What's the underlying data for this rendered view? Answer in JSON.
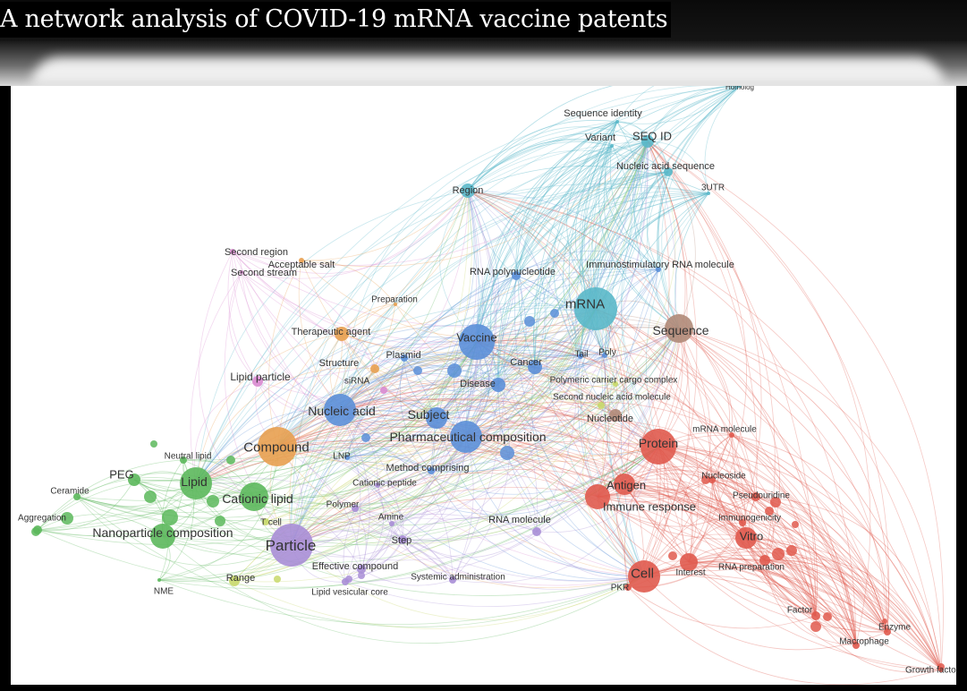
{
  "title": "A network analysis of COVID-19 mRNA vaccine patents",
  "clusters": {
    "cyan": "#5ab8c9",
    "blue": "#5b8fd8",
    "red": "#e05a4e",
    "green": "#5cb85c",
    "purple": "#a98ed6",
    "orange": "#e8a050",
    "yellow": "#c8d86a",
    "brown": "#b08a78",
    "pink": "#d98ad0"
  },
  "nodes": [
    {
      "id": "homolog",
      "label": "Homolog",
      "cluster": "cyan",
      "size": 2
    },
    {
      "id": "seqidentity",
      "label": "Sequence identity",
      "cluster": "cyan",
      "size": 2
    },
    {
      "id": "variant",
      "label": "Variant",
      "cluster": "cyan",
      "size": 2
    },
    {
      "id": "seqid",
      "label": "SEQ ID",
      "cluster": "cyan",
      "size": 7
    },
    {
      "id": "nucseq",
      "label": "Nucleic acid sequence",
      "cluster": "cyan",
      "size": 5
    },
    {
      "id": "utr3",
      "label": "3UTR",
      "cluster": "cyan",
      "size": 2
    },
    {
      "id": "region",
      "label": "Region",
      "cluster": "cyan",
      "size": 8
    },
    {
      "id": "secondregion",
      "label": "Second region",
      "cluster": "pink",
      "size": 3
    },
    {
      "id": "secondstream",
      "label": "Second stream",
      "cluster": "pink",
      "size": 2
    },
    {
      "id": "acceptablesalt",
      "label": "Acceptable salt",
      "cluster": "orange",
      "size": 3
    },
    {
      "id": "rnapoly",
      "label": "RNA polynucleotide",
      "cluster": "blue",
      "size": 5
    },
    {
      "id": "immunostim",
      "label": "Immunostimulatory RNA molecule",
      "cluster": "blue",
      "size": 3
    },
    {
      "id": "preparation",
      "label": "Preparation",
      "cluster": "orange",
      "size": 2
    },
    {
      "id": "mrna",
      "label": "mRNA",
      "cluster": "cyan",
      "size": 24
    },
    {
      "id": "therapeutic",
      "label": "Therapeutic agent",
      "cluster": "orange",
      "size": 8
    },
    {
      "id": "vaccine",
      "label": "Vaccine",
      "cluster": "blue",
      "size": 20
    },
    {
      "id": "sequence",
      "label": "Sequence",
      "cluster": "brown",
      "size": 16
    },
    {
      "id": "plasmid",
      "label": "Plasmid",
      "cluster": "blue",
      "size": 4
    },
    {
      "id": "structure",
      "label": "Structure",
      "cluster": "orange",
      "size": 5
    },
    {
      "id": "tail",
      "label": "Tail",
      "cluster": "blue",
      "size": 3
    },
    {
      "id": "poly",
      "label": "Poly",
      "cluster": "blue",
      "size": 3
    },
    {
      "id": "cancer",
      "label": "Cancer",
      "cluster": "blue",
      "size": 8
    },
    {
      "id": "lipidparticle",
      "label": "Lipid particle",
      "cluster": "pink",
      "size": 6
    },
    {
      "id": "sirna",
      "label": "siRNA",
      "cluster": "pink",
      "size": 4
    },
    {
      "id": "disease",
      "label": "Disease",
      "cluster": "blue",
      "size": 8
    },
    {
      "id": "polycarrier",
      "label": "Polymeric carrier cargo complex",
      "cluster": "yellow",
      "size": 3
    },
    {
      "id": "secondnuc",
      "label": "Second nucleic acid molecule",
      "cluster": "yellow",
      "size": 4
    },
    {
      "id": "nucleicacid",
      "label": "Nucleic acid",
      "cluster": "blue",
      "size": 18
    },
    {
      "id": "subject",
      "label": "Subject",
      "cluster": "blue",
      "size": 12
    },
    {
      "id": "nucleotide",
      "label": "Nucleotide",
      "cluster": "brown",
      "size": 7
    },
    {
      "id": "pharmcomp",
      "label": "Pharmaceutical composition",
      "cluster": "blue",
      "size": 18
    },
    {
      "id": "compound",
      "label": "Compound",
      "cluster": "orange",
      "size": 22
    },
    {
      "id": "mrnamol",
      "label": "mRNA molecule",
      "cluster": "red",
      "size": 3
    },
    {
      "id": "protein",
      "label": "Protein",
      "cluster": "red",
      "size": 20
    },
    {
      "id": "neutrallipid",
      "label": "Neutral lipid",
      "cluster": "green",
      "size": 4
    },
    {
      "id": "peg",
      "label": "PEG",
      "cluster": "green",
      "size": 7
    },
    {
      "id": "lnp",
      "label": "LNP",
      "cluster": "blue",
      "size": 3
    },
    {
      "id": "methodcomp",
      "label": "Method comprising",
      "cluster": "blue",
      "size": 4
    },
    {
      "id": "lipid",
      "label": "Lipid",
      "cluster": "green",
      "size": 18
    },
    {
      "id": "nucleoside",
      "label": "Nucleoside",
      "cluster": "red",
      "size": 4
    },
    {
      "id": "antigen",
      "label": "Antigen",
      "cluster": "red",
      "size": 12
    },
    {
      "id": "ceramide",
      "label": "Ceramide",
      "cluster": "green",
      "size": 4
    },
    {
      "id": "cationicpeptide",
      "label": "Cationic peptide",
      "cluster": "purple",
      "size": 3
    },
    {
      "id": "cationiclipid",
      "label": "Cationic lipid",
      "cluster": "green",
      "size": 16
    },
    {
      "id": "pseudouridine",
      "label": "Pseudouridine",
      "cluster": "red",
      "size": 5
    },
    {
      "id": "immuneresp",
      "label": "Immune response",
      "cluster": "red",
      "size": 14
    },
    {
      "id": "polymer",
      "label": "Polymer",
      "cluster": "purple",
      "size": 4
    },
    {
      "id": "immunogenicity",
      "label": "Immunogenicity",
      "cluster": "red",
      "size": 4
    },
    {
      "id": "aggregation",
      "label": "Aggregation",
      "cluster": "green",
      "size": 5
    },
    {
      "id": "tcell",
      "label": "T cell",
      "cluster": "yellow",
      "size": 4
    },
    {
      "id": "amine",
      "label": "Amine",
      "cluster": "purple",
      "size": 3
    },
    {
      "id": "rnamolecule",
      "label": "RNA molecule",
      "cluster": "purple",
      "size": 5
    },
    {
      "id": "nanocomp",
      "label": "Nanoparticle composition",
      "cluster": "green",
      "size": 14
    },
    {
      "id": "vitro",
      "label": "Vitro",
      "cluster": "red",
      "size": 12
    },
    {
      "id": "particle",
      "label": "Particle",
      "cluster": "purple",
      "size": 24
    },
    {
      "id": "step",
      "label": "Step",
      "cluster": "purple",
      "size": 5
    },
    {
      "id": "effectivecomp",
      "label": "Effective compound",
      "cluster": "purple",
      "size": 5
    },
    {
      "id": "rnaprep",
      "label": "RNA preparation",
      "cluster": "red",
      "size": 6
    },
    {
      "id": "range",
      "label": "Range",
      "cluster": "yellow",
      "size": 6
    },
    {
      "id": "systemic",
      "label": "Systemic administration",
      "cluster": "purple",
      "size": 4
    },
    {
      "id": "cell",
      "label": "Cell",
      "cluster": "red",
      "size": 18
    },
    {
      "id": "interest",
      "label": "Interest",
      "cluster": "red",
      "size": 10
    },
    {
      "id": "nme",
      "label": "NME",
      "cluster": "green",
      "size": 2
    },
    {
      "id": "lipidvesicular",
      "label": "Lipid vesicular core",
      "cluster": "purple",
      "size": 4
    },
    {
      "id": "pkr",
      "label": "PKR",
      "cluster": "red",
      "size": 4
    },
    {
      "id": "factor",
      "label": "Factor",
      "cluster": "red",
      "size": 5
    },
    {
      "id": "enzyme",
      "label": "Enzyme",
      "cluster": "red",
      "size": 4
    },
    {
      "id": "macrophage",
      "label": "Macrophage",
      "cluster": "red",
      "size": 4
    },
    {
      "id": "growthfactor",
      "label": "Growth factor",
      "cluster": "red",
      "size": 3
    }
  ]
}
